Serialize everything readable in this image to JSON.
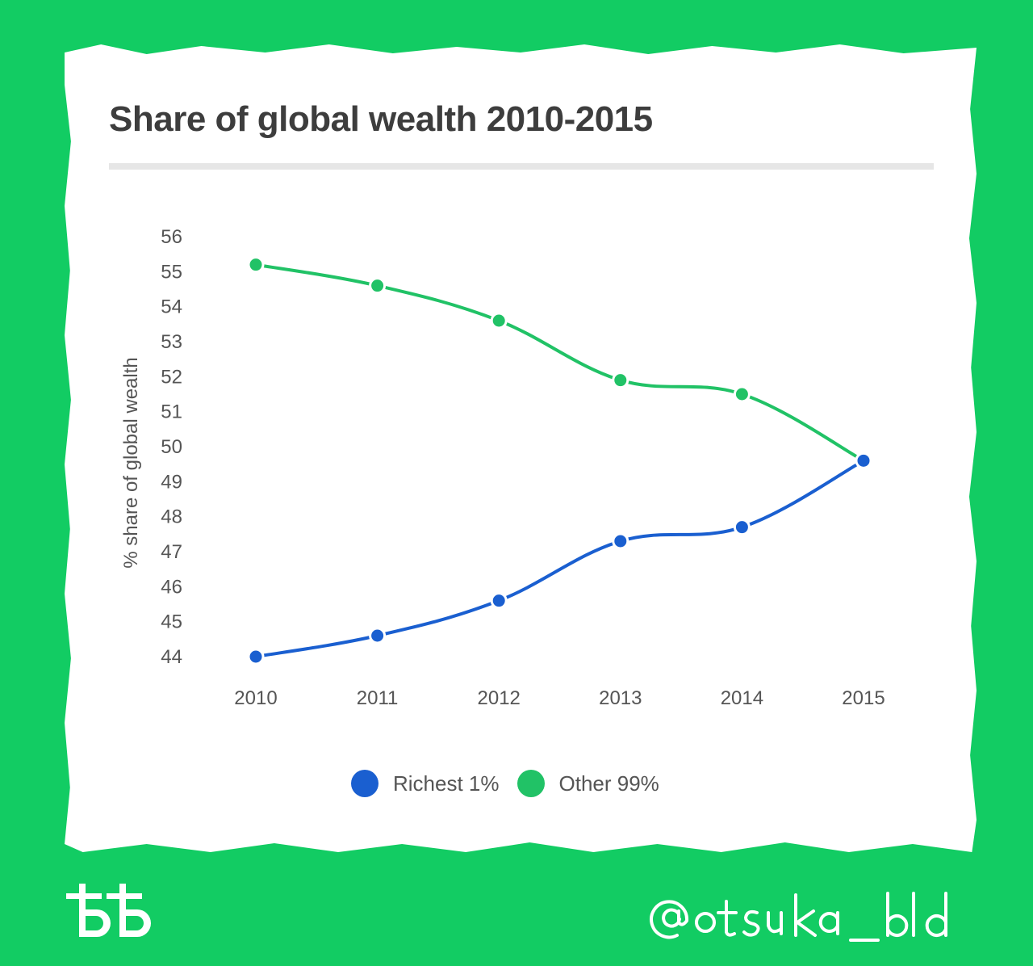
{
  "colors": {
    "background": "#12cc63",
    "card": "#ffffff",
    "richest": "#1a5fd0",
    "other": "#21c266"
  },
  "logo_text": "ѢѢ",
  "handle_text": "@otsuka_bld",
  "chart_data": {
    "type": "line",
    "title": "Share of global wealth 2010-2015",
    "xlabel": "",
    "ylabel": "% share of global wealth",
    "categories": [
      "2010",
      "2011",
      "2012",
      "2013",
      "2014",
      "2015"
    ],
    "y_ticks": [
      44,
      45,
      46,
      47,
      48,
      49,
      50,
      51,
      52,
      53,
      54,
      55,
      56
    ],
    "ylim": [
      44,
      56
    ],
    "grid": false,
    "legend_position": "bottom",
    "series": [
      {
        "name": "Richest 1%",
        "values": [
          44.0,
          44.6,
          45.6,
          47.3,
          47.7,
          49.6
        ]
      },
      {
        "name": "Other 99%",
        "values": [
          55.2,
          54.6,
          53.6,
          51.9,
          51.5,
          49.6
        ]
      }
    ]
  }
}
